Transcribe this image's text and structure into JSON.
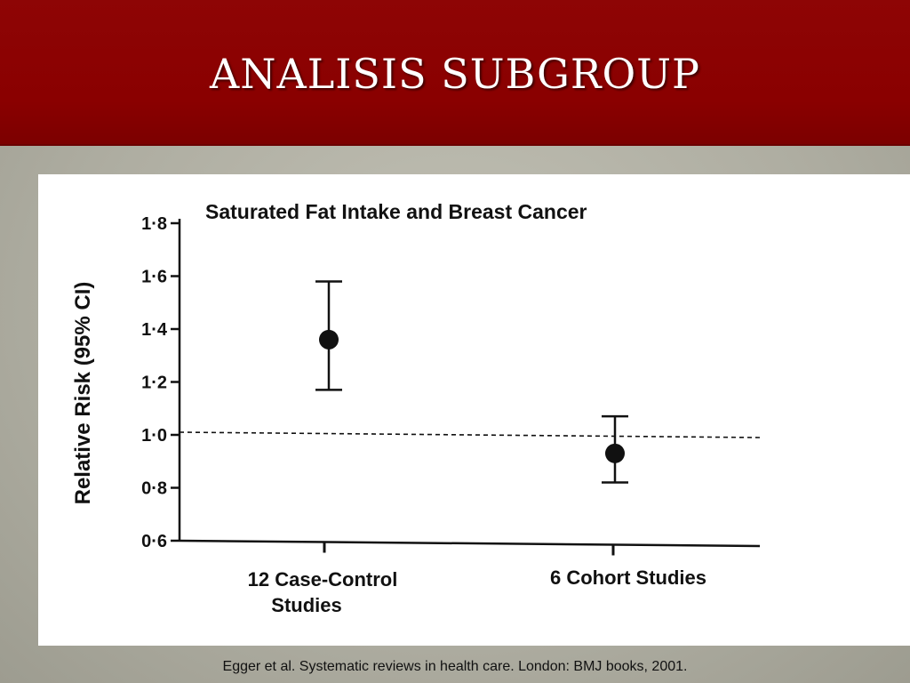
{
  "slide": {
    "title": "ANALISIS SUBGROUP",
    "caption": "Egger et al. Systematic reviews in health care. London: BMJ books, 2001.",
    "colors": {
      "header": "#8a0000",
      "background": "#b3b2a5"
    }
  },
  "chart_data": {
    "type": "scatter",
    "title": "Saturated Fat Intake and Breast Cancer",
    "xlabel": "",
    "ylabel": "Relative Risk (95% CI)",
    "ylim": [
      0.6,
      1.8
    ],
    "yticks": [
      "1·8",
      "1·6",
      "1·4",
      "1·2",
      "1·0",
      "0·8",
      "0·6"
    ],
    "ytick_values": [
      1.8,
      1.6,
      1.4,
      1.2,
      1.0,
      0.8,
      0.6
    ],
    "categories": [
      {
        "line1": "12 Case-Control",
        "line2": "Studies"
      },
      {
        "line1": "6 Cohort Studies",
        "line2": ""
      }
    ],
    "points": [
      {
        "estimate": 1.36,
        "ci_low": 1.17,
        "ci_high": 1.58
      },
      {
        "estimate": 0.93,
        "ci_low": 0.82,
        "ci_high": 1.07
      }
    ],
    "reference_line": 1.0,
    "grid": false,
    "legend": "none"
  }
}
